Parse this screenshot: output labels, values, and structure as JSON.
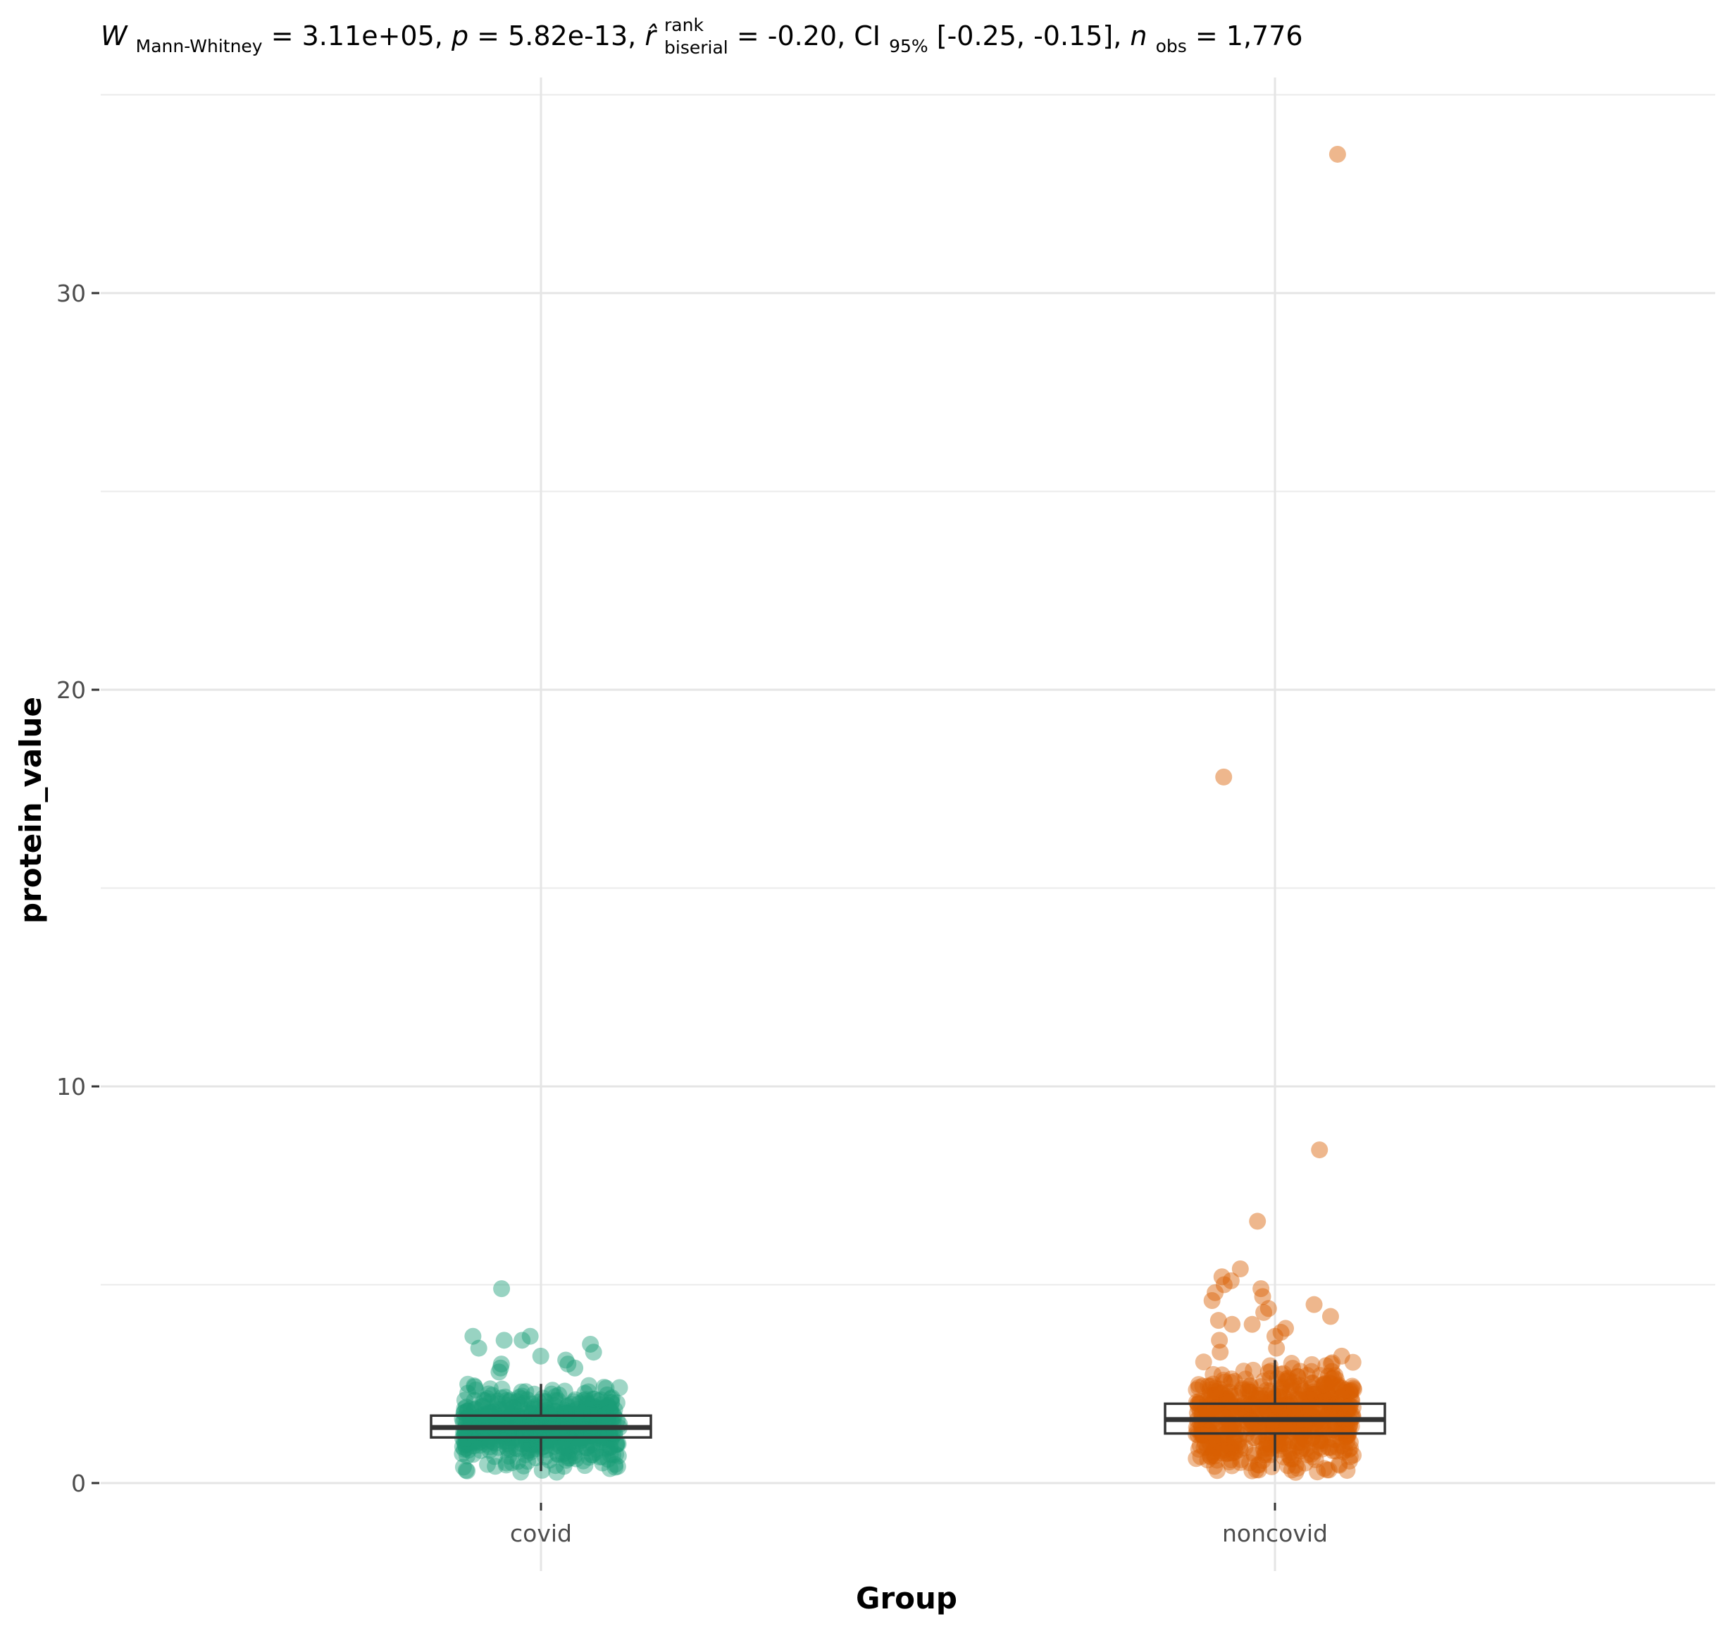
{
  "subtitle": {
    "w_symbol": "W",
    "w_sub": "Mann-Whitney",
    "w_value": " = 3.11e+05, ",
    "p_symbol": "p",
    "p_value": " = 5.82e-13, ",
    "r_symbol": "r̂",
    "r_sup": "rank",
    "r_sub": "biserial",
    "r_value": " = -0.20, CI",
    "ci_sub": "95%",
    "ci_value": " [-0.25, -0.15], ",
    "n_symbol": "n",
    "n_sub": "obs",
    "n_value": " = 1,776"
  },
  "chart_data": {
    "type": "box-jitter",
    "xlabel": "Group",
    "ylabel": "protein_value",
    "categories": [
      "covid",
      "noncovid"
    ],
    "ylim": [
      -1.5,
      35.5
    ],
    "yticks": [
      0,
      10,
      20,
      30
    ],
    "grid": true,
    "legend": "none",
    "colors": {
      "covid": "#1b9e77",
      "noncovid": "#d95f02"
    },
    "boxes": [
      {
        "group": "covid",
        "whisker_low": 0.3,
        "q1": 1.15,
        "median": 1.4,
        "q3": 1.7,
        "whisker_high": 2.5
      },
      {
        "group": "noncovid",
        "whisker_low": 0.3,
        "q1": 1.25,
        "median": 1.6,
        "q3": 2.0,
        "whisker_high": 3.1
      }
    ],
    "outliers": [
      {
        "group": "covid",
        "values": [
          4.9,
          3.7,
          3.7,
          3.6,
          3.6,
          3.5,
          3.4,
          3.3,
          3.2,
          3.1,
          3.0,
          3.0,
          2.9,
          2.9,
          2.8
        ]
      },
      {
        "group": "noncovid",
        "values": [
          33.5,
          17.8,
          8.4,
          6.6,
          5.4,
          5.2,
          5.1,
          5.0,
          4.9,
          4.8,
          4.7,
          4.6,
          4.5,
          4.4,
          4.3,
          4.2,
          4.1,
          4.0,
          4.0,
          3.9,
          3.8,
          3.7,
          3.6,
          3.4,
          3.3,
          3.2
        ]
      }
    ]
  }
}
